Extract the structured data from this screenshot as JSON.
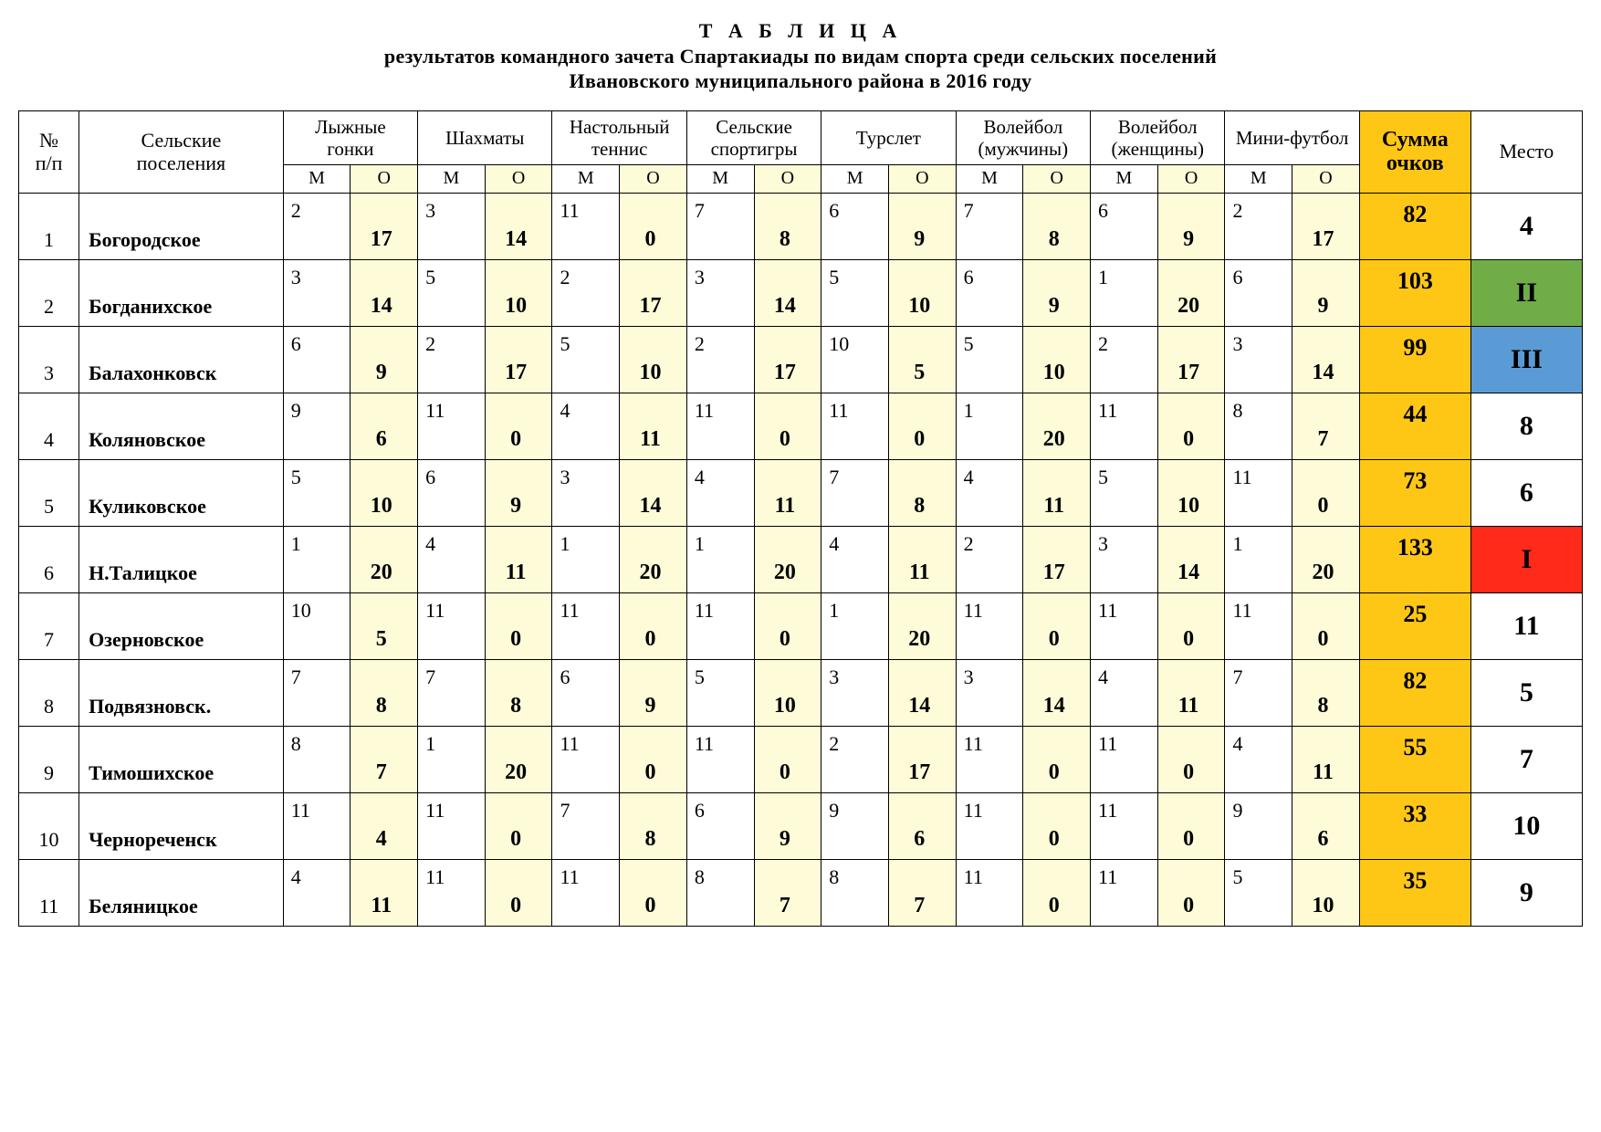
{
  "title_lines": [
    "Т А Б Л И Ц А",
    "результатов командного зачета Спартакиады по видам спорта среди сельских поселений",
    "Ивановского муниципального района в 2016 году"
  ],
  "headers": {
    "num": "№ п/п",
    "name": "Сельские поселения",
    "sub_m": "М",
    "sub_o": "О",
    "sum": "Сумма очков",
    "place": "Место"
  },
  "colors": {
    "o_bg": "#fdfbd8",
    "sub_o_bg": "#fdfbd8",
    "sum_bg": "#ffc715",
    "place_i_bg": "#ff2a1a",
    "place_ii_bg": "#70ad47",
    "place_iii_bg": "#5b9bd5",
    "border": "#000000",
    "text": "#000000",
    "bg": "#ffffff"
  },
  "fonts": {
    "family": "Times New Roman",
    "title_size_pt": 16,
    "header_size_pt": 16,
    "cell_size_pt": 16,
    "bold_cell_size_pt": 18,
    "place_size_pt": 22
  },
  "sports": [
    "Лыжные гонки",
    "Шахматы",
    "Настольный теннис",
    "Сельские спортигры",
    "Турслет",
    "Волейбол (мужчины)",
    "Волейбол (женщины)",
    "Мини-футбол"
  ],
  "rows": [
    {
      "n": 1,
      "name": "Богородское",
      "mo": [
        [
          2,
          17
        ],
        [
          3,
          14
        ],
        [
          11,
          0
        ],
        [
          7,
          8
        ],
        [
          6,
          9
        ],
        [
          7,
          8
        ],
        [
          6,
          9
        ],
        [
          2,
          17
        ]
      ],
      "sum": 82,
      "place": "4",
      "place_bg": null
    },
    {
      "n": 2,
      "name": "Богданихское",
      "mo": [
        [
          3,
          14
        ],
        [
          5,
          10
        ],
        [
          2,
          17
        ],
        [
          3,
          14
        ],
        [
          5,
          10
        ],
        [
          6,
          9
        ],
        [
          1,
          20
        ],
        [
          6,
          9
        ]
      ],
      "sum": 103,
      "place": "II",
      "place_bg": "#70ad47"
    },
    {
      "n": 3,
      "name": "Балахонковск",
      "mo": [
        [
          6,
          9
        ],
        [
          2,
          17
        ],
        [
          5,
          10
        ],
        [
          2,
          17
        ],
        [
          10,
          5
        ],
        [
          5,
          10
        ],
        [
          2,
          17
        ],
        [
          3,
          14
        ]
      ],
      "sum": 99,
      "place": "III",
      "place_bg": "#5b9bd5"
    },
    {
      "n": 4,
      "name": "Коляновское",
      "mo": [
        [
          9,
          6
        ],
        [
          11,
          0
        ],
        [
          4,
          11
        ],
        [
          11,
          0
        ],
        [
          11,
          0
        ],
        [
          1,
          20
        ],
        [
          11,
          0
        ],
        [
          8,
          7
        ]
      ],
      "sum": 44,
      "place": "8",
      "place_bg": null
    },
    {
      "n": 5,
      "name": "Куликовское",
      "mo": [
        [
          5,
          10
        ],
        [
          6,
          9
        ],
        [
          3,
          14
        ],
        [
          4,
          11
        ],
        [
          7,
          8
        ],
        [
          4,
          11
        ],
        [
          5,
          10
        ],
        [
          11,
          0
        ]
      ],
      "sum": 73,
      "place": "6",
      "place_bg": null
    },
    {
      "n": 6,
      "name": "Н.Талицкое",
      "mo": [
        [
          1,
          20
        ],
        [
          4,
          11
        ],
        [
          1,
          20
        ],
        [
          1,
          20
        ],
        [
          4,
          11
        ],
        [
          2,
          17
        ],
        [
          3,
          14
        ],
        [
          1,
          20
        ]
      ],
      "sum": 133,
      "place": "I",
      "place_bg": "#ff2a1a"
    },
    {
      "n": 7,
      "name": "Озерновское",
      "mo": [
        [
          10,
          5
        ],
        [
          11,
          0
        ],
        [
          11,
          0
        ],
        [
          11,
          0
        ],
        [
          1,
          20
        ],
        [
          11,
          0
        ],
        [
          11,
          0
        ],
        [
          11,
          0
        ]
      ],
      "sum": 25,
      "place": "11",
      "place_bg": null
    },
    {
      "n": 8,
      "name": "Подвязновск.",
      "mo": [
        [
          7,
          8
        ],
        [
          7,
          8
        ],
        [
          6,
          9
        ],
        [
          5,
          10
        ],
        [
          3,
          14
        ],
        [
          3,
          14
        ],
        [
          4,
          11
        ],
        [
          7,
          8
        ]
      ],
      "sum": 82,
      "place": "5",
      "place_bg": null
    },
    {
      "n": 9,
      "name": "Тимошихское",
      "mo": [
        [
          8,
          7
        ],
        [
          1,
          20
        ],
        [
          11,
          0
        ],
        [
          11,
          0
        ],
        [
          2,
          17
        ],
        [
          11,
          0
        ],
        [
          11,
          0
        ],
        [
          4,
          11
        ]
      ],
      "sum": 55,
      "place": "7",
      "place_bg": null
    },
    {
      "n": 10,
      "name": "Чернореченск",
      "mo": [
        [
          11,
          4
        ],
        [
          11,
          0
        ],
        [
          7,
          8
        ],
        [
          6,
          9
        ],
        [
          9,
          6
        ],
        [
          11,
          0
        ],
        [
          11,
          0
        ],
        [
          9,
          6
        ]
      ],
      "sum": 33,
      "place": "10",
      "place_bg": null
    },
    {
      "n": 11,
      "name": "Беляницкое",
      "mo": [
        [
          4,
          11
        ],
        [
          11,
          0
        ],
        [
          11,
          0
        ],
        [
          8,
          7
        ],
        [
          8,
          7
        ],
        [
          11,
          0
        ],
        [
          11,
          0
        ],
        [
          5,
          10
        ]
      ],
      "sum": 35,
      "place": "9",
      "place_bg": null
    }
  ]
}
